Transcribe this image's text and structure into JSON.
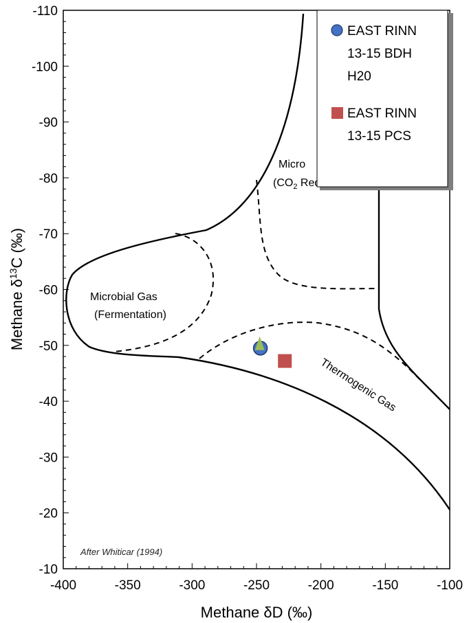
{
  "chart_data": {
    "type": "scatter",
    "title": "",
    "xlabel": "Methane δD (‰)",
    "ylabel_prefix": "Methane δ",
    "ylabel_sup": "13",
    "ylabel_suffix": "C (‰)",
    "xlim": [
      -400,
      -100
    ],
    "ylim": [
      -10,
      -110
    ],
    "x_ticks": [
      "-400",
      "-350",
      "-300",
      "-250",
      "-200",
      "-150",
      "-100"
    ],
    "y_ticks": [
      "-10",
      "-20",
      "-30",
      "-40",
      "-50",
      "-60",
      "-70",
      "-80",
      "-90",
      "-100",
      "-110"
    ],
    "grid": false,
    "legend_position": "top-right",
    "series": [
      {
        "name_line1": "EAST RINN",
        "name_line2": "13-15 BDH",
        "name_line3": "H20",
        "marker": "circle",
        "color": "#4472C4",
        "x": [
          -247
        ],
        "y": [
          -49.5
        ]
      },
      {
        "name_line1": "EAST RINN",
        "name_line2": "13-15 PCS",
        "marker": "square",
        "color": "#C0504D",
        "x": [
          -228
        ],
        "y": [
          -47.2
        ]
      }
    ],
    "extra_marker": {
      "marker": "triangle",
      "color": "#9BBB59",
      "x": -247.5,
      "y": -50
    },
    "regions": {
      "fermentation_line1": "Microbial Gas",
      "fermentation_line2": "(Fermentation)",
      "co2_line1": "Micro",
      "co2_line2_a": "(CO",
      "co2_line2_sub": "2",
      "co2_line2_b": " Reduction)",
      "thermogenic": "Thermogenic Gas"
    },
    "note": "After Whiticar (1994)"
  }
}
